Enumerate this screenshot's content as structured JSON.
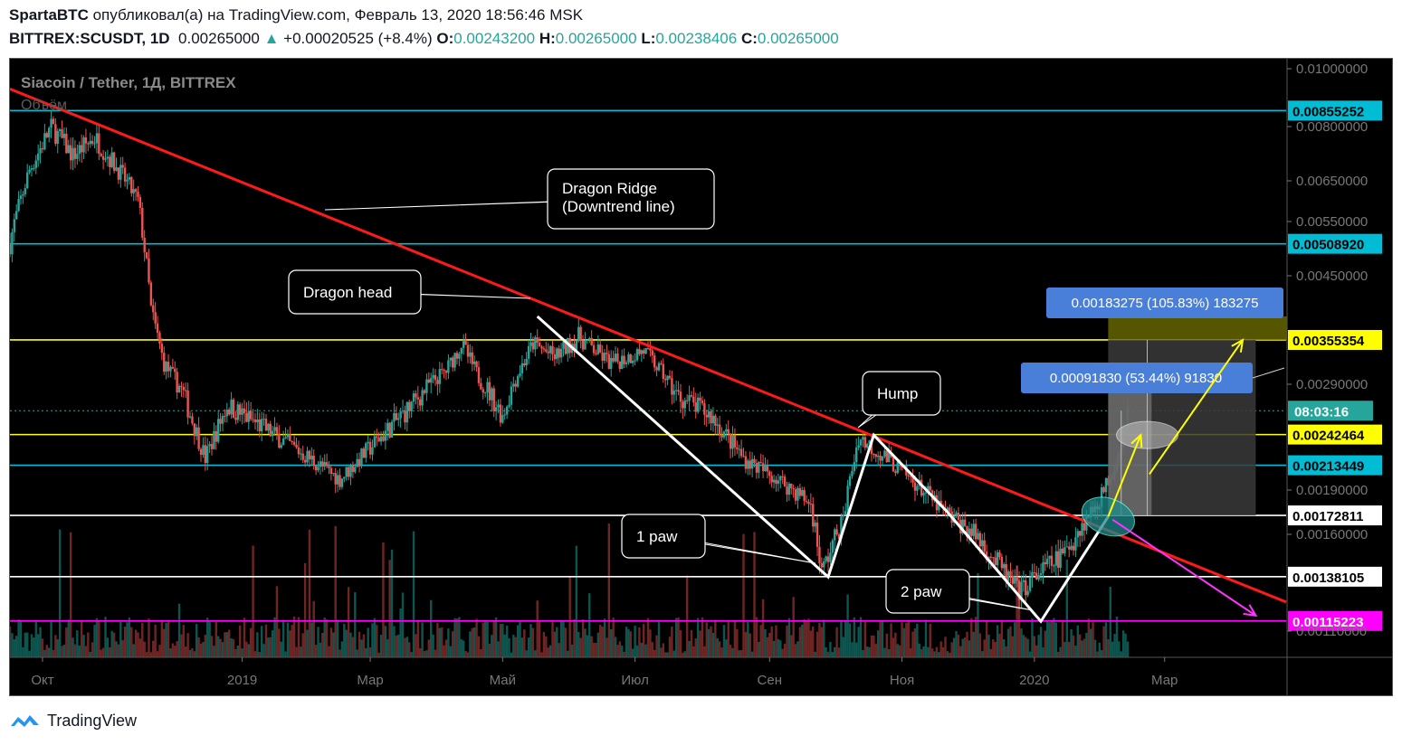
{
  "header": {
    "author": "SpartaBTC",
    "published_text": "опубликовал(а) на TradingView.com, Февраль 13, 2020 18:56:46 MSK",
    "symbol": "BITTREX:SCUSDT, 1D",
    "last": "0.00265000",
    "change": "+0.00020525 (+8.4%)",
    "o_label": "O:",
    "o_value": "0.00243200",
    "h_label": "H:",
    "h_value": "0.00265000",
    "l_label": "L:",
    "l_value": "0.00238406",
    "c_label": "C:",
    "c_value": "0.00265000"
  },
  "footer": {
    "brand": "TradingView"
  },
  "chart_data": {
    "type": "candlestick",
    "title": "Siacoin / Tether, 1Д, BITTREX",
    "subtitle": "Объём",
    "ylim": [
      0.0009,
      0.0102
    ],
    "y_ticks": [
      0.01,
      0.008,
      0.0065,
      0.0055,
      0.0045,
      0.0029,
      0.0019,
      0.0016,
      0.0011
    ],
    "y_tick_labels": [
      "0.01000000",
      "0.00800000",
      "0.00650000",
      "0.00550000",
      "0.00450000",
      "0.00290000",
      "0.00190000",
      "0.00160000",
      "0.00110000"
    ],
    "x_range": [
      "2018-09-16",
      "2020-04-26"
    ],
    "x_ticks": [
      {
        "date": "2018-10-01",
        "label": "Окт"
      },
      {
        "date": "2019-01-01",
        "label": "2019"
      },
      {
        "date": "2019-03-01",
        "label": "Мар"
      },
      {
        "date": "2019-05-01",
        "label": "Май"
      },
      {
        "date": "2019-07-01",
        "label": "Июл"
      },
      {
        "date": "2019-09-01",
        "label": "Сен"
      },
      {
        "date": "2019-11-01",
        "label": "Ноя"
      },
      {
        "date": "2020-01-01",
        "label": "2020"
      },
      {
        "date": "2020-03-01",
        "label": "Мар"
      }
    ],
    "price_path": [
      [
        "2018-09-16",
        0.0051
      ],
      [
        "2018-09-25",
        0.0068
      ],
      [
        "2018-10-05",
        0.008
      ],
      [
        "2018-10-15",
        0.0072
      ],
      [
        "2018-10-25",
        0.0077
      ],
      [
        "2018-11-05",
        0.0068
      ],
      [
        "2018-11-14",
        0.006
      ],
      [
        "2018-11-20",
        0.004
      ],
      [
        "2018-11-26",
        0.0032
      ],
      [
        "2018-12-05",
        0.0028
      ],
      [
        "2018-12-15",
        0.0022
      ],
      [
        "2018-12-25",
        0.0027
      ],
      [
        "2019-01-10",
        0.0025
      ],
      [
        "2019-02-01",
        0.0022
      ],
      [
        "2019-02-15",
        0.002
      ],
      [
        "2019-03-01",
        0.0023
      ],
      [
        "2019-03-20",
        0.0027
      ],
      [
        "2019-04-05",
        0.0031
      ],
      [
        "2019-04-12",
        0.0035
      ],
      [
        "2019-04-20",
        0.003
      ],
      [
        "2019-05-01",
        0.0026
      ],
      [
        "2019-05-15",
        0.0035
      ],
      [
        "2019-05-25",
        0.0033
      ],
      [
        "2019-06-05",
        0.0036
      ],
      [
        "2019-06-20",
        0.0032
      ],
      [
        "2019-07-05",
        0.0034
      ],
      [
        "2019-07-20",
        0.0028
      ],
      [
        "2019-08-05",
        0.0026
      ],
      [
        "2019-08-20",
        0.0022
      ],
      [
        "2019-09-05",
        0.002
      ],
      [
        "2019-09-20",
        0.0018
      ],
      [
        "2019-09-25",
        0.0014
      ],
      [
        "2019-10-05",
        0.0017
      ],
      [
        "2019-10-12",
        0.0024
      ],
      [
        "2019-10-25",
        0.0022
      ],
      [
        "2019-11-05",
        0.002
      ],
      [
        "2019-11-20",
        0.00175
      ],
      [
        "2019-12-05",
        0.0016
      ],
      [
        "2019-12-15",
        0.00145
      ],
      [
        "2019-12-25",
        0.0013
      ],
      [
        "2020-01-03",
        0.0014
      ],
      [
        "2020-01-15",
        0.0015
      ],
      [
        "2020-01-25",
        0.0017
      ],
      [
        "2020-02-02",
        0.0019
      ],
      [
        "2020-02-08",
        0.0022
      ],
      [
        "2020-02-13",
        0.00265
      ]
    ],
    "volume_scale": [
      0,
      1
    ],
    "horizontal_levels": [
      {
        "value": 0.00855252,
        "label": "0.00855252",
        "color": "#00bcd4"
      },
      {
        "value": 0.0050892,
        "label": "0.00508920",
        "color": "#00bcd4"
      },
      {
        "value": 0.00355354,
        "label": "0.00355354",
        "color": "#ffff00"
      },
      {
        "value": 0.00242464,
        "label": "0.00242464",
        "color": "#ffff00"
      },
      {
        "value": 0.00213449,
        "label": "0.00213449",
        "color": "#00bcd4"
      },
      {
        "value": 0.00172811,
        "label": "0.00172811",
        "color": "#ffffff"
      },
      {
        "value": 0.00138105,
        "label": "0.00138105",
        "color": "#ffffff"
      },
      {
        "value": 0.00115223,
        "label": "0.00115223",
        "color": "#ff00ff"
      }
    ],
    "countdown": "08:03:16",
    "downtrend_line": [
      [
        "2018-09-16",
        0.0093
      ],
      [
        "2020-04-26",
        0.00125
      ]
    ],
    "pattern_line": [
      [
        "2019-05-17",
        0.0039
      ],
      [
        "2019-09-28",
        0.00138
      ],
      [
        "2019-10-19",
        0.00242
      ],
      [
        "2019-11-22",
        0.00175
      ],
      [
        "2020-01-04",
        0.00115
      ],
      [
        "2020-02-04",
        0.00172
      ]
    ],
    "measure_labels": [
      "0.00183275 (105.83%) 183275",
      "0.00091830 (53.44%) 91830"
    ],
    "annotations": [
      {
        "text": "Dragon Ridge\n(Downtrend line)"
      },
      {
        "text": "Dragon head"
      },
      {
        "text": "Hump"
      },
      {
        "text": "1 paw"
      },
      {
        "text": "2 paw"
      }
    ]
  }
}
